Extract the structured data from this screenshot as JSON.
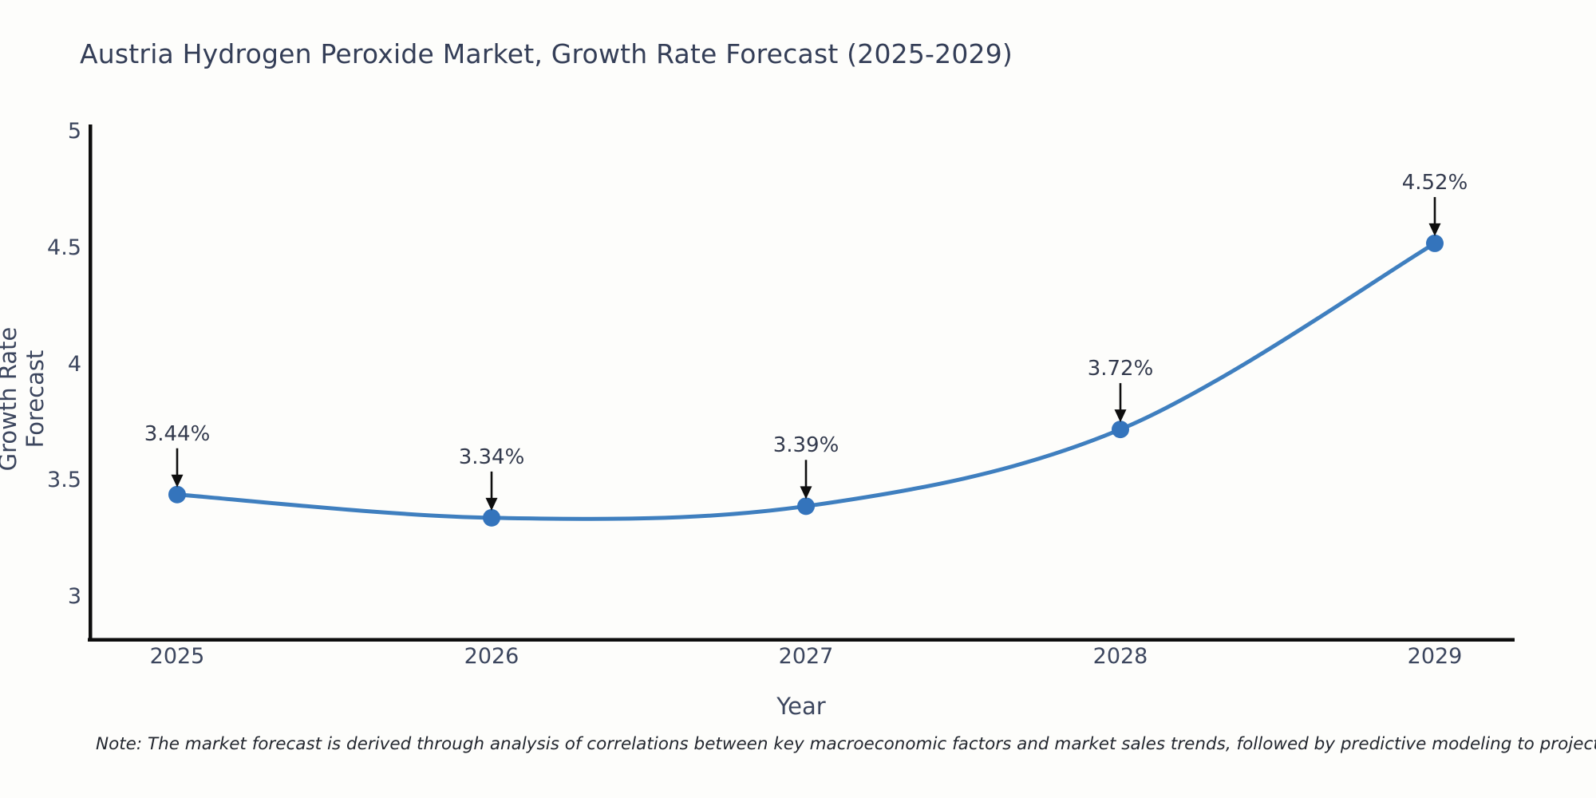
{
  "page": {
    "background": "#fdfdfb"
  },
  "chart_data": {
    "type": "line",
    "curve": "spline",
    "title": "Austria Hydrogen Peroxide Market, Growth Rate Forecast (2025-2029)",
    "xlabel": "Year",
    "ylabel": "Growth Rate Forecast",
    "categories": [
      "2025",
      "2026",
      "2027",
      "2028",
      "2029"
    ],
    "values": [
      3.44,
      3.34,
      3.39,
      3.72,
      4.52
    ],
    "point_labels": [
      "3.44%",
      "3.34%",
      "3.39%",
      "3.72%",
      "4.52%"
    ],
    "ytick_values": [
      5,
      4.5,
      4,
      3.5,
      3
    ],
    "ytick_labels": [
      "5",
      "4.5",
      "4",
      "3.5",
      "3"
    ],
    "ylim": [
      2.82,
      5.02
    ],
    "grid": false,
    "legend": "none",
    "line_color": "#3f7fbf",
    "marker_color": "#3474bc",
    "arrow_color": "#0e0e0e",
    "axis_color": "#0d0d0d"
  },
  "note": {
    "text": "Note: The market forecast is derived through analysis of correlations between key macroeconomic factors and market sales trends, followed by predictive modeling to project future sales"
  }
}
